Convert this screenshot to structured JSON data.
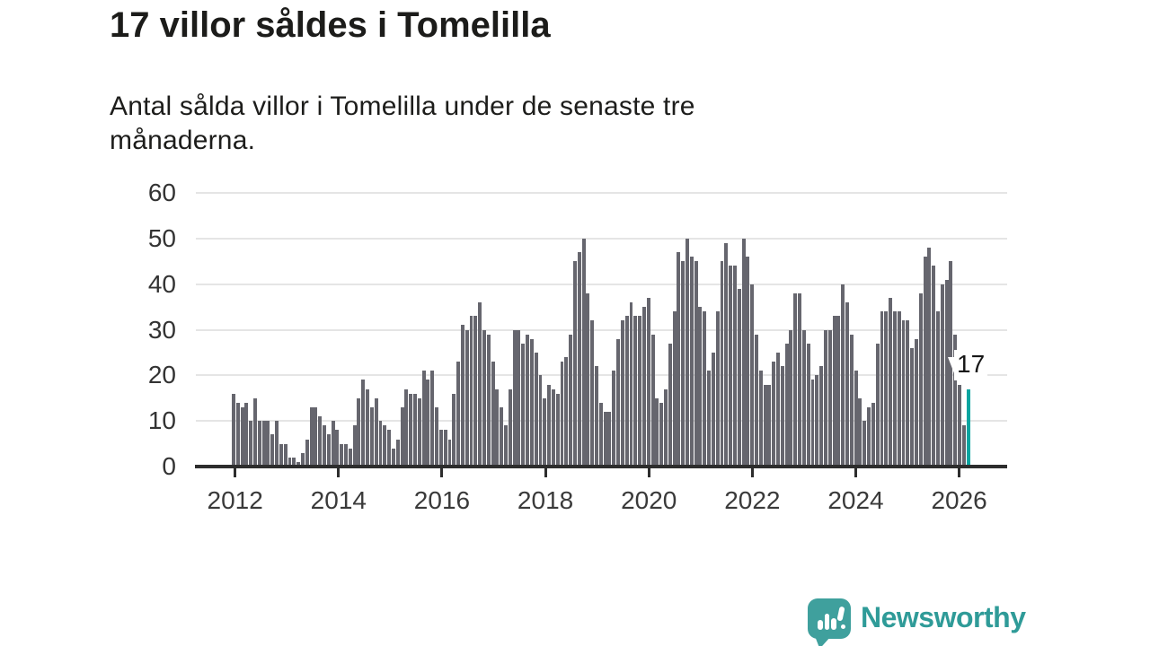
{
  "header": {
    "title": "17 villor såldes i Tomelilla",
    "subtitle_lines": [
      "Antal sålda villor i Tomelilla under de senaste tre",
      "månaderna."
    ]
  },
  "chart_data": {
    "type": "bar",
    "title": "17 villor såldes i Tomelilla",
    "subtitle": "Antal sålda villor i Tomelilla under de senaste tre månaderna.",
    "frequency": "monthly",
    "start_month": "2012-01",
    "end_month": "2026-03",
    "x_tick_labels": [
      "2012",
      "2014",
      "2016",
      "2018",
      "2020",
      "2022",
      "2024",
      "2026"
    ],
    "y_ticks": [
      0,
      10,
      20,
      30,
      40,
      50,
      60
    ],
    "ylim": [
      0,
      60
    ],
    "grid": true,
    "legend": "none",
    "bar_color": "#66666e",
    "highlight_color": "#0aa5a1",
    "highlight_index": 170,
    "annotation": {
      "text": "17",
      "target": "last-bar"
    },
    "values": [
      16,
      14,
      13,
      14,
      10,
      15,
      10,
      10,
      10,
      7,
      10,
      5,
      5,
      2,
      2,
      1,
      3,
      6,
      13,
      13,
      11,
      9,
      7,
      10,
      8,
      5,
      5,
      4,
      9,
      15,
      19,
      17,
      13,
      15,
      10,
      9,
      8,
      4,
      6,
      13,
      17,
      16,
      16,
      15,
      21,
      19,
      21,
      13,
      8,
      8,
      6,
      16,
      23,
      31,
      30,
      33,
      33,
      36,
      30,
      29,
      23,
      17,
      13,
      9,
      17,
      30,
      30,
      27,
      29,
      28,
      25,
      20,
      15,
      18,
      17,
      16,
      23,
      24,
      29,
      45,
      47,
      50,
      38,
      32,
      22,
      14,
      12,
      12,
      21,
      28,
      32,
      33,
      36,
      33,
      33,
      35,
      37,
      29,
      15,
      14,
      17,
      27,
      34,
      47,
      45,
      50,
      46,
      45,
      35,
      34,
      21,
      25,
      34,
      45,
      49,
      44,
      44,
      39,
      50,
      46,
      40,
      29,
      21,
      18,
      18,
      23,
      25,
      22,
      27,
      30,
      38,
      38,
      30,
      27,
      19,
      20,
      22,
      30,
      30,
      33,
      33,
      40,
      36,
      29,
      21,
      15,
      10,
      13,
      14,
      27,
      34,
      34,
      37,
      34,
      34,
      32,
      32,
      26,
      28,
      38,
      46,
      48,
      44,
      34,
      40,
      41,
      45,
      29,
      18,
      9,
      17
    ]
  },
  "footer": {
    "brand": "Newsworthy",
    "logo_icon": "bar-chart-speech-bubble-icon",
    "brand_color": "#2f9b98",
    "icon_color": "#3fa09d"
  }
}
